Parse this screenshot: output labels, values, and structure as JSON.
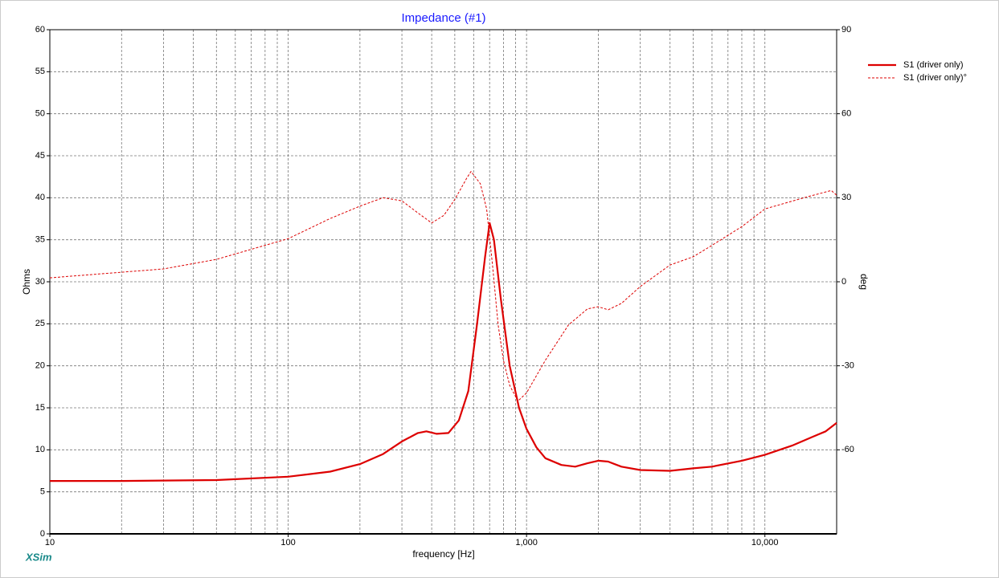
{
  "chart_data": {
    "type": "line",
    "title": "Impedance (#1)",
    "xlabel": "frequency [Hz]",
    "ylabel": "Ohms",
    "y2label": "deg",
    "brand": "XSim",
    "xscale": "log",
    "xlim": [
      10,
      20000
    ],
    "xticks": [
      10,
      100,
      {
        "value": 1000,
        "label": "1,000"
      },
      {
        "value": 10000,
        "label": "10,000"
      }
    ],
    "xminorticks": [
      20,
      30,
      40,
      50,
      60,
      70,
      80,
      90,
      200,
      300,
      400,
      500,
      600,
      700,
      800,
      900,
      2000,
      3000,
      4000,
      5000,
      6000,
      7000,
      8000,
      9000
    ],
    "ylim": [
      0,
      60
    ],
    "yticks": [
      0,
      5,
      10,
      15,
      20,
      25,
      30,
      35,
      40,
      45,
      50,
      55,
      60
    ],
    "y2lim": [
      -90,
      90
    ],
    "y2ticks": [
      -60,
      -30,
      0,
      30,
      60,
      90
    ],
    "grid": true,
    "legend": "right",
    "series": [
      {
        "name": "S1 (driver only)",
        "color": "#dd0000",
        "style": "solid",
        "width": 2.2,
        "x": [
          10,
          20,
          50,
          100,
          150,
          200,
          250,
          300,
          350,
          380,
          420,
          470,
          520,
          570,
          620,
          670,
          700,
          730,
          780,
          850,
          930,
          1000,
          1100,
          1200,
          1400,
          1600,
          1800,
          2000,
          2200,
          2500,
          3000,
          4000,
          5000,
          6000,
          8000,
          10000,
          13000,
          16000,
          18000,
          20000
        ],
        "values": [
          6.3,
          6.3,
          6.4,
          6.8,
          7.4,
          8.3,
          9.5,
          11,
          12,
          12.2,
          11.9,
          12.0,
          13.5,
          17,
          25,
          33,
          37,
          35,
          28,
          20,
          15,
          12.5,
          10.3,
          9.0,
          8.2,
          8.0,
          8.4,
          8.7,
          8.6,
          8.0,
          7.6,
          7.5,
          7.8,
          8.0,
          8.7,
          9.4,
          10.5,
          11.6,
          12.2,
          13.2
        ]
      },
      {
        "name": "S1 (driver only)°",
        "color": "#dd0000",
        "style": "dashed",
        "width": 1,
        "axis": "y2",
        "x": [
          10,
          30,
          50,
          80,
          100,
          150,
          200,
          250,
          300,
          350,
          400,
          450,
          500,
          560,
          585,
          640,
          680,
          720,
          760,
          800,
          850,
          920,
          1000,
          1200,
          1500,
          1800,
          2000,
          2200,
          2500,
          3000,
          4000,
          5000,
          6000,
          8000,
          10000,
          15000,
          19000,
          20000
        ],
        "values": [
          1.4,
          4.6,
          8,
          13,
          15.4,
          22.6,
          27,
          30,
          28.9,
          24.6,
          21,
          23.7,
          29.4,
          36.9,
          39.4,
          35,
          26,
          6,
          -15.4,
          -28,
          -37,
          -42.6,
          -39.7,
          -28,
          -15.4,
          -9.7,
          -8.9,
          -10,
          -7.7,
          -1.7,
          6,
          8.9,
          13,
          19.7,
          26,
          30.3,
          32.6,
          30.9
        ]
      }
    ]
  }
}
